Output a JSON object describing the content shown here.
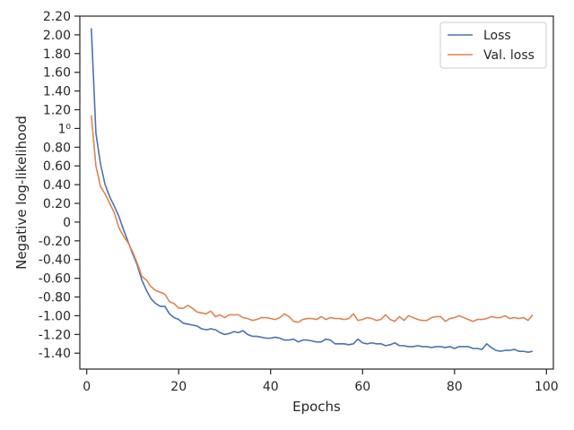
{
  "chart_data": {
    "type": "line",
    "xlabel": "Epochs",
    "ylabel": "Negative log-likelihood",
    "xlim": [
      -1.5,
      101.5
    ],
    "ylim": [
      -1.57,
      2.2
    ],
    "x_ticks": [
      0,
      20,
      40,
      60,
      80,
      100
    ],
    "x_tick_labels": [
      "0",
      "20",
      "40",
      "60",
      "80",
      "100"
    ],
    "y_ticks": [
      2.2,
      2.0,
      1.8,
      1.6,
      1.4,
      1.2,
      1.0,
      0.8,
      0.6,
      0.4,
      0.2,
      0,
      -0.2,
      -0.4,
      -0.6,
      -0.8,
      -1.0,
      -1.2,
      -1.4
    ],
    "y_tick_labels": [
      "2.20",
      "2.00",
      "1.80",
      "1.60",
      "1.40",
      "1.20",
      "1⁰",
      "0.80",
      "0.60",
      "0.40",
      "0.20",
      "0",
      "-0.20",
      "-0.40",
      "-0.60",
      "-0.80",
      "-1.00",
      "-1.20",
      "-1.40"
    ],
    "legend_position": "top-right",
    "grid": false,
    "series": [
      {
        "name": "Loss",
        "color": "#4c72b0",
        "x": [
          1,
          2,
          3,
          4,
          5,
          6,
          7,
          8,
          9,
          10,
          11,
          12,
          13,
          14,
          15,
          16,
          17,
          18,
          19,
          20,
          21,
          22,
          23,
          24,
          25,
          26,
          27,
          28,
          29,
          30,
          31,
          32,
          33,
          34,
          35,
          36,
          37,
          38,
          39,
          40,
          41,
          42,
          43,
          44,
          45,
          46,
          47,
          48,
          49,
          50,
          51,
          52,
          53,
          54,
          55,
          56,
          57,
          58,
          59,
          60,
          61,
          62,
          63,
          64,
          65,
          66,
          67,
          68,
          69,
          70,
          71,
          72,
          73,
          74,
          75,
          76,
          77,
          78,
          79,
          80,
          81,
          82,
          83,
          84,
          85,
          86,
          87,
          88,
          89,
          90,
          91,
          92,
          93,
          94,
          95,
          96,
          97
        ],
        "y": [
          2.07,
          0.95,
          0.62,
          0.4,
          0.27,
          0.17,
          0.06,
          -0.08,
          -0.21,
          -0.34,
          -0.46,
          -0.62,
          -0.73,
          -0.82,
          -0.87,
          -0.9,
          -0.9,
          -0.98,
          -1.02,
          -1.04,
          -1.08,
          -1.09,
          -1.1,
          -1.11,
          -1.14,
          -1.15,
          -1.14,
          -1.15,
          -1.18,
          -1.2,
          -1.19,
          -1.17,
          -1.18,
          -1.16,
          -1.2,
          -1.22,
          -1.22,
          -1.23,
          -1.24,
          -1.24,
          -1.23,
          -1.24,
          -1.26,
          -1.26,
          -1.25,
          -1.28,
          -1.26,
          -1.26,
          -1.27,
          -1.28,
          -1.28,
          -1.25,
          -1.26,
          -1.3,
          -1.3,
          -1.3,
          -1.31,
          -1.3,
          -1.25,
          -1.29,
          -1.3,
          -1.29,
          -1.3,
          -1.3,
          -1.32,
          -1.31,
          -1.29,
          -1.32,
          -1.32,
          -1.33,
          -1.33,
          -1.32,
          -1.33,
          -1.33,
          -1.34,
          -1.33,
          -1.33,
          -1.34,
          -1.33,
          -1.35,
          -1.33,
          -1.33,
          -1.33,
          -1.35,
          -1.35,
          -1.36,
          -1.3,
          -1.34,
          -1.37,
          -1.38,
          -1.37,
          -1.37,
          -1.36,
          -1.38,
          -1.38,
          -1.39,
          -1.38
        ]
      },
      {
        "name": "Val. loss",
        "color": "#dd8452",
        "x": [
          1,
          2,
          3,
          4,
          5,
          6,
          7,
          8,
          9,
          10,
          11,
          12,
          13,
          14,
          15,
          16,
          17,
          18,
          19,
          20,
          21,
          22,
          23,
          24,
          25,
          26,
          27,
          28,
          29,
          30,
          31,
          32,
          33,
          34,
          35,
          36,
          37,
          38,
          39,
          40,
          41,
          42,
          43,
          44,
          45,
          46,
          47,
          48,
          49,
          50,
          51,
          52,
          53,
          54,
          55,
          56,
          57,
          58,
          59,
          60,
          61,
          62,
          63,
          64,
          65,
          66,
          67,
          68,
          69,
          70,
          71,
          72,
          73,
          74,
          75,
          76,
          77,
          78,
          79,
          80,
          81,
          82,
          83,
          84,
          85,
          86,
          87,
          88,
          89,
          90,
          91,
          92,
          93,
          94,
          95,
          96,
          97
        ],
        "y": [
          1.14,
          0.6,
          0.38,
          0.3,
          0.2,
          0.1,
          -0.06,
          -0.15,
          -0.22,
          -0.32,
          -0.44,
          -0.58,
          -0.62,
          -0.69,
          -0.73,
          -0.75,
          -0.77,
          -0.85,
          -0.87,
          -0.92,
          -0.92,
          -0.89,
          -0.92,
          -0.96,
          -0.97,
          -0.98,
          -0.95,
          -1.01,
          -0.99,
          -1.02,
          -0.99,
          -0.99,
          -0.99,
          -1.02,
          -1.03,
          -1.05,
          -1.04,
          -1.02,
          -1.02,
          -1.03,
          -1.04,
          -1.02,
          -0.98,
          -1.01,
          -1.06,
          -1.07,
          -1.04,
          -1.03,
          -1.03,
          -1.04,
          -1.01,
          -1.04,
          -1.02,
          -1.03,
          -1.03,
          -1.04,
          -1.03,
          -0.98,
          -1.05,
          -1.04,
          -1.02,
          -1.03,
          -1.05,
          -1.04,
          -0.99,
          -1.04,
          -1.06,
          -1.01,
          -1.05,
          -1.0,
          -1.02,
          -1.04,
          -1.05,
          -1.05,
          -1.02,
          -1.01,
          -1.01,
          -1.06,
          -1.03,
          -1.02,
          -1.0,
          -1.02,
          -1.04,
          -1.06,
          -1.04,
          -1.04,
          -1.03,
          -1.01,
          -1.02,
          -1.02,
          -1.0,
          -1.03,
          -1.02,
          -1.03,
          -1.02,
          -1.05,
          -0.99
        ]
      }
    ]
  }
}
